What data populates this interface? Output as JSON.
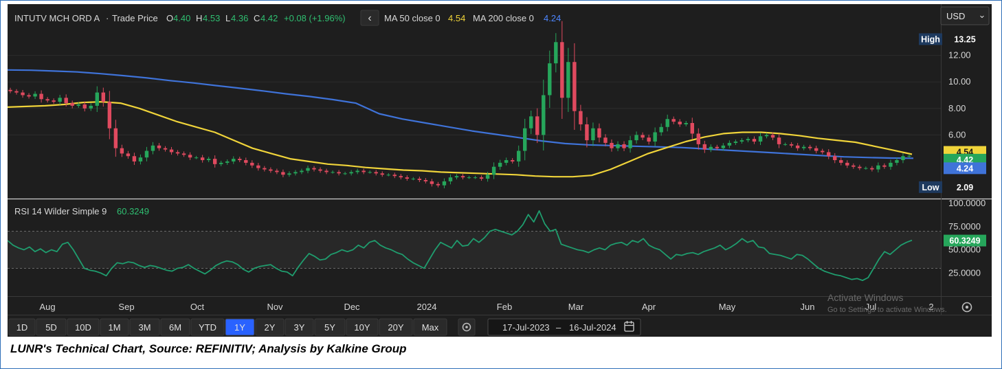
{
  "header": {
    "instrument": "INTUTV MCH ORD A",
    "separator": "·",
    "trade_label": "Trade Price",
    "ohlc": [
      {
        "key": "O",
        "value": "4.40"
      },
      {
        "key": "H",
        "value": "4.53"
      },
      {
        "key": "L",
        "value": "4.36"
      },
      {
        "key": "C",
        "value": "4.42"
      }
    ],
    "change": "+0.08 (+1.96%)",
    "ma50_label": "MA 50 close 0",
    "ma50_value": "4.54",
    "ma200_label": "MA 200 close 0",
    "ma200_value": "4.24",
    "currency": "USD",
    "chevron_left": "‹",
    "chevron_down": "⌄"
  },
  "rsi_header": {
    "label": "RSI 14 Wilder Simple 9",
    "value": "60.3249"
  },
  "ranges": [
    "1D",
    "5D",
    "10D",
    "1M",
    "3M",
    "6M",
    "YTD",
    "1Y",
    "2Y",
    "3Y",
    "5Y",
    "10Y",
    "20Y",
    "Max"
  ],
  "active_range": "1Y",
  "date_range": {
    "start": "17-Jul-2023",
    "sep": "–",
    "end": "16-Jul-2024"
  },
  "watermark": {
    "line1": "Activate Windows",
    "line2": "Go to Settings to activate Windows."
  },
  "caption": "LUNR's Technical Chart, Source: REFINITIV; Analysis by Kalkine Group",
  "colors": {
    "background": "#1e1e1e",
    "up": "#26a65b",
    "down": "#e04a5f",
    "ma50": "#f0d43a",
    "ma200": "#3f73d9",
    "rsi": "#1f9d6e",
    "active_range": "#2962ff"
  },
  "chart_data": [
    {
      "type": "candlestick",
      "title": "INTUTV MCH ORD A - Trade Price",
      "x_ticks": [
        "Aug",
        "Sep",
        "Oct",
        "Nov",
        "Dec",
        "2024",
        "Feb",
        "Mar",
        "Apr",
        "May",
        "Jun",
        "Jul",
        "2"
      ],
      "y_ticks": [
        "12.00",
        "10.00",
        "8.00",
        "6.00"
      ],
      "ylim": [
        1.2,
        14.0
      ],
      "annotations": {
        "high_label": "High",
        "high": "13.25",
        "low_label": "Low",
        "low": "2.09"
      },
      "last_labels": {
        "ma50": "4.54",
        "close": "4.42",
        "ma200": "4.24"
      },
      "close": [
        9.3,
        9.2,
        9.0,
        8.9,
        9.1,
        8.7,
        8.6,
        8.5,
        8.8,
        8.4,
        8.2,
        8.3,
        8.0,
        8.2,
        9.2,
        8.5,
        6.5,
        5.0,
        4.6,
        4.4,
        4.0,
        4.3,
        4.8,
        5.2,
        5.0,
        4.9,
        4.7,
        4.6,
        4.5,
        4.3,
        4.3,
        4.1,
        4.2,
        3.8,
        3.9,
        4.0,
        4.2,
        4.1,
        3.9,
        3.7,
        3.5,
        3.4,
        3.3,
        3.2,
        3.0,
        3.1,
        3.2,
        3.3,
        3.5,
        3.4,
        3.3,
        3.2,
        3.2,
        3.1,
        3.1,
        3.2,
        3.3,
        3.2,
        3.2,
        3.1,
        3.0,
        3.0,
        2.9,
        2.8,
        2.7,
        2.7,
        2.6,
        2.5,
        2.3,
        2.2,
        2.5,
        2.8,
        2.9,
        2.8,
        2.8,
        2.8,
        2.7,
        3.0,
        3.6,
        3.9,
        4.1,
        4.0,
        4.8,
        6.5,
        7.4,
        6.0,
        9.0,
        11.4,
        13.0,
        8.8,
        11.5,
        7.8,
        6.8,
        5.6,
        6.5,
        5.8,
        5.4,
        5.0,
        5.3,
        5.0,
        5.6,
        6.0,
        5.8,
        5.5,
        6.2,
        6.6,
        7.2,
        7.0,
        6.8,
        6.9,
        6.1,
        5.3,
        4.9,
        5.1,
        5.0,
        5.2,
        5.4,
        5.5,
        5.6,
        5.7,
        5.5,
        5.9,
        6.0,
        5.8,
        5.3,
        5.3,
        5.2,
        5.0,
        5.1,
        5.0,
        4.8,
        4.7,
        4.4,
        4.1,
        3.9,
        3.7,
        3.6,
        3.5,
        3.5,
        3.4,
        3.7,
        3.6,
        3.9,
        4.1,
        4.4,
        4.42
      ],
      "ma50": [
        8.1,
        8.15,
        8.2,
        8.3,
        8.45,
        8.5,
        8.4,
        8.0,
        7.5,
        7.0,
        6.6,
        6.2,
        5.6,
        5.0,
        4.6,
        4.2,
        4.0,
        3.8,
        3.7,
        3.55,
        3.45,
        3.35,
        3.3,
        3.2,
        3.15,
        3.1,
        3.05,
        3.0,
        2.9,
        2.85,
        2.85,
        2.95,
        3.4,
        4.0,
        4.6,
        5.05,
        5.5,
        5.85,
        6.1,
        6.2,
        6.2,
        6.1,
        5.95,
        5.75,
        5.6,
        5.45,
        5.15,
        4.85,
        4.54
      ],
      "ma200": [
        10.9,
        10.88,
        10.82,
        10.75,
        10.62,
        10.47,
        10.3,
        10.1,
        9.92,
        9.72,
        9.52,
        9.32,
        9.1,
        8.9,
        8.67,
        8.4,
        7.6,
        7.2,
        6.9,
        6.6,
        6.3,
        6.05,
        5.8,
        5.55,
        5.35,
        5.25,
        5.2,
        5.15,
        5.1,
        5.05,
        4.95,
        4.85,
        4.75,
        4.65,
        4.55,
        4.45,
        4.35,
        4.3,
        4.26,
        4.24
      ]
    },
    {
      "type": "line",
      "title": "RSI 14 Wilder Simple 9",
      "y_ticks": [
        "100.0000",
        "75.0000",
        "50.0000",
        "25.0000"
      ],
      "ylim": [
        0,
        100
      ],
      "reference_lines": [
        70,
        30
      ],
      "last_value": "60.3249",
      "values": [
        60,
        55,
        52,
        50,
        53,
        48,
        51,
        47,
        50,
        48,
        56,
        58,
        50,
        40,
        30,
        28,
        27,
        25,
        22,
        30,
        36,
        35,
        37,
        36,
        33,
        31,
        33,
        32,
        30,
        28,
        27,
        30,
        31,
        34,
        30,
        27,
        24,
        28,
        33,
        36,
        38,
        37,
        34,
        29,
        26,
        30,
        32,
        33,
        34,
        30,
        27,
        26,
        22,
        31,
        39,
        46,
        43,
        39,
        40,
        45,
        47,
        50,
        48,
        50,
        55,
        52,
        58,
        60,
        55,
        52,
        50,
        47,
        45,
        40,
        36,
        33,
        30,
        40,
        50,
        58,
        55,
        52,
        60,
        54,
        55,
        62,
        58,
        63,
        70,
        72,
        70,
        68,
        66,
        70,
        77,
        88,
        80,
        92,
        78,
        70,
        72,
        56,
        54,
        52,
        50,
        49,
        47,
        50,
        52,
        50,
        55,
        57,
        58,
        55,
        60,
        58,
        62,
        55,
        52,
        50,
        45,
        40,
        45,
        44,
        46,
        47,
        45,
        48,
        50,
        52,
        55,
        50,
        53,
        57,
        62,
        58,
        60,
        53,
        52,
        46,
        45,
        44,
        42,
        40,
        45,
        44,
        40,
        35,
        30,
        27,
        25,
        23,
        22,
        20,
        18,
        19,
        17,
        20,
        30,
        40,
        48,
        45,
        50,
        55,
        58,
        60.3249
      ]
    }
  ]
}
